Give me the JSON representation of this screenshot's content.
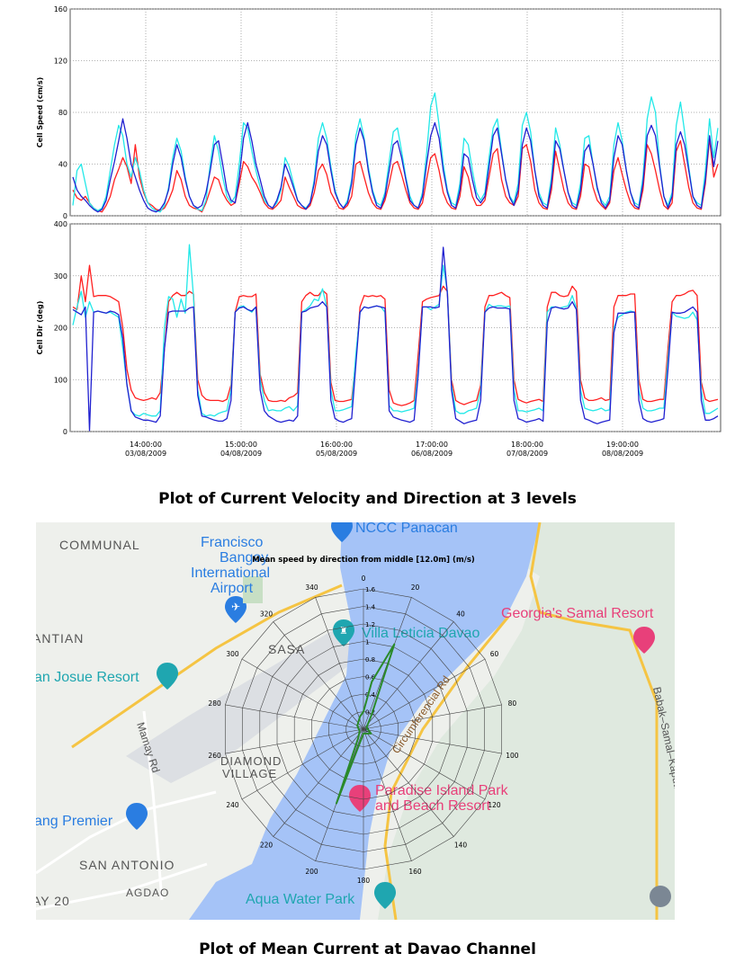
{
  "captions": {
    "top": "Plot of Current Velocity and Direction at 3 levels",
    "bottom": "Plot of Mean Current at Davao Channel"
  },
  "colors": {
    "red_series": "#ff2020",
    "cyan_series": "#22e8e8",
    "blue_series": "#2020d0",
    "water": "#a5c3f7",
    "road": "#f5c443",
    "poi_pink": "#e8407a",
    "poi_teal": "#1fa6b0",
    "poi_blue": "#2a7de1",
    "polar_line": "#2a8a2a"
  },
  "chart_data": [
    {
      "type": "line",
      "ylabel": "Cell Speed (cm/s)",
      "ylim": [
        0,
        160
      ],
      "yticks": [
        "0",
        "40",
        "80",
        "120",
        "160"
      ],
      "xlim": [
        0,
        156
      ],
      "series": [
        {
          "color": "red",
          "values": [
            20,
            14,
            12,
            15,
            10,
            6,
            4,
            3,
            8,
            15,
            28,
            36,
            45,
            38,
            25,
            55,
            30,
            18,
            10,
            8,
            5,
            4,
            6,
            12,
            20,
            35,
            28,
            15,
            8,
            6,
            5,
            3,
            10,
            20,
            30,
            28,
            18,
            12,
            8,
            10,
            25,
            42,
            38,
            30,
            25,
            18,
            10,
            6,
            5,
            8,
            12,
            30,
            22,
            15,
            8,
            6,
            5,
            8,
            18,
            35,
            40,
            32,
            18,
            12,
            6,
            5,
            8,
            15,
            40,
            42,
            30,
            18,
            10,
            6,
            5,
            12,
            25,
            40,
            42,
            32,
            20,
            10,
            6,
            5,
            10,
            28,
            45,
            48,
            35,
            18,
            10,
            6,
            5,
            15,
            38,
            30,
            15,
            8,
            8,
            12,
            30,
            48,
            52,
            28,
            15,
            10,
            8,
            15,
            52,
            55,
            42,
            20,
            10,
            6,
            5,
            20,
            50,
            35,
            20,
            10,
            6,
            5,
            15,
            40,
            38,
            22,
            12,
            8,
            5,
            10,
            35,
            45,
            32,
            20,
            10,
            6,
            5,
            20,
            55,
            48,
            35,
            20,
            8,
            5,
            10,
            50,
            58,
            40,
            22,
            10,
            6,
            5,
            25,
            60,
            30,
            40
          ]
        },
        {
          "color": "cyan",
          "values": [
            8,
            35,
            40,
            25,
            10,
            6,
            4,
            6,
            15,
            35,
            55,
            70,
            62,
            40,
            30,
            45,
            35,
            20,
            10,
            6,
            4,
            3,
            8,
            22,
            45,
            60,
            50,
            30,
            15,
            8,
            5,
            4,
            12,
            40,
            62,
            50,
            30,
            15,
            10,
            15,
            40,
            72,
            68,
            50,
            35,
            22,
            12,
            8,
            6,
            10,
            20,
            45,
            38,
            25,
            12,
            8,
            6,
            10,
            28,
            60,
            72,
            60,
            38,
            20,
            10,
            6,
            12,
            28,
            62,
            75,
            60,
            38,
            20,
            10,
            8,
            18,
            42,
            65,
            68,
            50,
            30,
            15,
            8,
            6,
            18,
            48,
            85,
            95,
            70,
            40,
            20,
            10,
            8,
            25,
            60,
            55,
            35,
            18,
            12,
            18,
            45,
            68,
            75,
            50,
            28,
            15,
            10,
            25,
            70,
            80,
            65,
            35,
            18,
            10,
            8,
            30,
            68,
            55,
            35,
            18,
            10,
            8,
            25,
            60,
            62,
            40,
            20,
            12,
            8,
            15,
            55,
            72,
            58,
            35,
            18,
            10,
            8,
            30,
            75,
            92,
            80,
            40,
            15,
            8,
            18,
            70,
            88,
            65,
            38,
            15,
            10,
            8,
            35,
            75,
            45,
            68
          ]
        },
        {
          "color": "blue",
          "values": [
            30,
            20,
            15,
            12,
            8,
            5,
            3,
            5,
            12,
            28,
            42,
            58,
            75,
            60,
            40,
            30,
            20,
            12,
            6,
            4,
            3,
            5,
            10,
            20,
            40,
            55,
            45,
            28,
            15,
            8,
            6,
            8,
            18,
            35,
            55,
            58,
            40,
            20,
            12,
            10,
            30,
            60,
            72,
            58,
            40,
            28,
            15,
            8,
            6,
            12,
            22,
            40,
            32,
            22,
            12,
            8,
            5,
            10,
            25,
            50,
            62,
            55,
            35,
            18,
            10,
            6,
            10,
            25,
            55,
            68,
            58,
            35,
            18,
            8,
            6,
            15,
            35,
            55,
            58,
            45,
            28,
            12,
            8,
            6,
            15,
            40,
            62,
            72,
            60,
            35,
            18,
            8,
            6,
            20,
            48,
            45,
            28,
            14,
            10,
            15,
            38,
            62,
            68,
            48,
            28,
            14,
            8,
            20,
            55,
            68,
            58,
            35,
            15,
            8,
            6,
            25,
            58,
            52,
            35,
            18,
            8,
            6,
            20,
            50,
            55,
            40,
            22,
            10,
            6,
            12,
            45,
            62,
            55,
            35,
            18,
            8,
            6,
            25,
            62,
            70,
            62,
            38,
            15,
            6,
            15,
            55,
            65,
            55,
            35,
            15,
            8,
            6,
            28,
            62,
            38,
            58
          ]
        }
      ]
    },
    {
      "type": "line",
      "ylabel": "Cell Dir (deg)",
      "ylim": [
        0,
        400
      ],
      "yticks": [
        "0",
        "100",
        "200",
        "300",
        "400"
      ],
      "xticks": [
        "14:00:00",
        "15:00:00",
        "16:00:00",
        "17:00:00",
        "18:00:00",
        "19:00:00"
      ],
      "xtick_dates": [
        "03/08/2009",
        "04/08/2009",
        "05/08/2009",
        "06/08/2009",
        "07/08/2009",
        "08/08/2009"
      ],
      "xlim": [
        0,
        156
      ],
      "series": [
        {
          "color": "red",
          "values": [
            240,
            235,
            300,
            250,
            320,
            260,
            262,
            262,
            262,
            260,
            255,
            250,
            200,
            120,
            80,
            65,
            62,
            60,
            62,
            65,
            62,
            75,
            160,
            250,
            262,
            268,
            262,
            262,
            270,
            265,
            100,
            70,
            62,
            60,
            60,
            60,
            58,
            62,
            90,
            230,
            260,
            262,
            260,
            260,
            265,
            110,
            75,
            60,
            58,
            58,
            60,
            58,
            65,
            68,
            75,
            250,
            262,
            268,
            262,
            262,
            272,
            265,
            95,
            60,
            58,
            58,
            60,
            62,
            140,
            240,
            262,
            260,
            262,
            260,
            262,
            255,
            80,
            55,
            52,
            50,
            52,
            55,
            60,
            150,
            250,
            255,
            258,
            260,
            262,
            280,
            270,
            100,
            60,
            55,
            52,
            55,
            58,
            60,
            90,
            240,
            262,
            262,
            265,
            268,
            262,
            258,
            100,
            62,
            58,
            55,
            58,
            60,
            62,
            58,
            240,
            268,
            268,
            262,
            260,
            262,
            280,
            270,
            100,
            65,
            60,
            60,
            62,
            65,
            60,
            62,
            240,
            262,
            262,
            262,
            265,
            265,
            100,
            62,
            58,
            58,
            60,
            62,
            62,
            160,
            250,
            262,
            262,
            265,
            270,
            272,
            262,
            95,
            62,
            58,
            60,
            62
          ]
        },
        {
          "color": "cyan",
          "values": [
            205,
            240,
            270,
            220,
            250,
            230,
            232,
            230,
            228,
            230,
            225,
            220,
            160,
            90,
            40,
            32,
            30,
            35,
            32,
            30,
            30,
            40,
            200,
            260,
            255,
            220,
            255,
            228,
            360,
            260,
            80,
            35,
            30,
            32,
            30,
            35,
            38,
            40,
            80,
            230,
            240,
            242,
            235,
            230,
            240,
            100,
            60,
            40,
            42,
            40,
            40,
            45,
            48,
            40,
            50,
            230,
            235,
            242,
            255,
            252,
            275,
            240,
            80,
            40,
            40,
            42,
            45,
            48,
            150,
            230,
            240,
            238,
            240,
            242,
            240,
            230,
            50,
            40,
            40,
            38,
            40,
            42,
            45,
            120,
            240,
            240,
            235,
            240,
            245,
            320,
            270,
            90,
            40,
            35,
            35,
            40,
            42,
            45,
            80,
            230,
            245,
            240,
            242,
            242,
            240,
            242,
            80,
            40,
            40,
            38,
            40,
            42,
            45,
            40,
            230,
            240,
            240,
            238,
            240,
            242,
            262,
            238,
            80,
            45,
            42,
            40,
            42,
            45,
            40,
            42,
            200,
            220,
            225,
            230,
            232,
            230,
            80,
            45,
            40,
            40,
            42,
            45,
            45,
            140,
            230,
            222,
            220,
            218,
            220,
            230,
            215,
            80,
            35,
            35,
            40,
            45
          ]
        },
        {
          "color": "blue",
          "values": [
            235,
            230,
            225,
            240,
            2,
            230,
            232,
            230,
            228,
            232,
            230,
            225,
            180,
            90,
            40,
            28,
            25,
            22,
            22,
            20,
            18,
            30,
            160,
            230,
            232,
            232,
            232,
            232,
            238,
            240,
            70,
            30,
            28,
            25,
            22,
            20,
            20,
            25,
            60,
            230,
            238,
            240,
            235,
            232,
            240,
            80,
            40,
            30,
            25,
            20,
            18,
            20,
            22,
            20,
            30,
            230,
            232,
            238,
            240,
            242,
            250,
            240,
            60,
            25,
            20,
            18,
            22,
            25,
            130,
            230,
            240,
            238,
            240,
            242,
            240,
            238,
            40,
            28,
            25,
            22,
            20,
            18,
            22,
            110,
            240,
            240,
            240,
            238,
            240,
            355,
            265,
            80,
            25,
            20,
            15,
            18,
            20,
            22,
            60,
            230,
            238,
            240,
            238,
            238,
            238,
            236,
            60,
            25,
            22,
            18,
            20,
            22,
            25,
            20,
            210,
            238,
            240,
            238,
            236,
            238,
            250,
            235,
            60,
            25,
            22,
            18,
            15,
            18,
            20,
            22,
            190,
            228,
            228,
            228,
            230,
            230,
            60,
            25,
            20,
            18,
            20,
            22,
            25,
            120,
            230,
            228,
            228,
            230,
            235,
            240,
            230,
            60,
            22,
            22,
            25,
            30
          ]
        }
      ]
    },
    {
      "type": "polar",
      "title": "Mean speed by direction from middle [12.0m] (m/s)",
      "radial_range": [
        0,
        1.6
      ],
      "radial_ticks": [
        "0",
        "0.2",
        "0.4",
        "0.6",
        "0.8",
        "1",
        "1.2",
        "1.4",
        "1.6"
      ],
      "angle_ticks": [
        "0",
        "20",
        "40",
        "60",
        "80",
        "100",
        "120",
        "140",
        "160",
        "180",
        "200",
        "220",
        "240",
        "260",
        "280",
        "300",
        "320",
        "340"
      ],
      "grid": true,
      "points": [
        {
          "direction": 0,
          "speed": 0.2
        },
        {
          "direction": 10,
          "speed": 0.55
        },
        {
          "direction": 20,
          "speed": 1.03
        },
        {
          "direction": 30,
          "speed": 0.18
        },
        {
          "direction": 60,
          "speed": 0.04
        },
        {
          "direction": 120,
          "speed": 0.1
        },
        {
          "direction": 180,
          "speed": 0.05
        },
        {
          "direction": 200,
          "speed": 0.9
        },
        {
          "direction": 210,
          "speed": 0.12
        },
        {
          "direction": 240,
          "speed": 0.05
        },
        {
          "direction": 300,
          "speed": 0.08
        },
        {
          "direction": 345,
          "speed": 0.15
        },
        {
          "direction": 0,
          "speed": 0.2
        }
      ]
    }
  ],
  "map": {
    "labels": {
      "communal": "COMMUNAL",
      "ntian": "ANTIAN",
      "sasa": "SASA",
      "diamond1": "DIAMOND",
      "diamond2": "VILLAGE",
      "san_antonio": "SAN ANTONIO",
      "agdao": "AGDAO",
      "ay20": "AY 20",
      "mamay": "Mamay Rd",
      "circumferencial": "Circumferencial Rd",
      "babak": "Babak–Samal–Kaputian Rd"
    },
    "pois": {
      "airport_1": "Francisco",
      "airport_2": "Bangoy",
      "airport_3": "International",
      "airport_4": "Airport",
      "panacan": "NCCC Panacan",
      "villa": "Villa Leticia Davao",
      "georgias": "Georgia's Samal Resort",
      "san_josue": "an Josue Resort",
      "paradise_1": "Paradise Island Park",
      "paradise_2": "and Beach Resort",
      "premier": "ang Premier",
      "aqua": "Aqua Water Park"
    }
  }
}
